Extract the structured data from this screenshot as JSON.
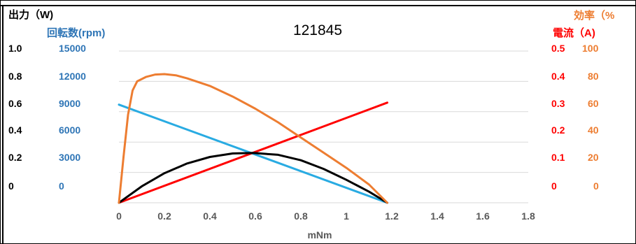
{
  "chart_data": {
    "type": "line",
    "title": "121845",
    "xlabel": "mNm",
    "x_ticks": [
      "0",
      "0.2",
      "0.4",
      "0.6",
      "0.8",
      "1",
      "1.2",
      "1.4",
      "1.6",
      "1.8"
    ],
    "xlim": [
      0,
      1.8
    ],
    "grid": true,
    "axes": {
      "output": {
        "label": "出力（W)",
        "ticks": [
          "0",
          "0.2",
          "0.4",
          "0.6",
          "0.8",
          "1.0"
        ],
        "range": [
          0,
          1.0
        ],
        "color": "#000000"
      },
      "speed": {
        "label": "回転数(rpm)",
        "ticks": [
          "0",
          "3000",
          "6000",
          "9000",
          "12000",
          "15000"
        ],
        "range": [
          0,
          15000
        ],
        "color": "#2e75b6"
      },
      "current": {
        "label": "電流（A)",
        "ticks": [
          "0",
          "0.1",
          "0.2",
          "0.3",
          "0.4",
          "0.5"
        ],
        "range": [
          0,
          0.5
        ],
        "color": "#ff0000"
      },
      "efficiency": {
        "label": "効率（%",
        "ticks": [
          "0",
          "20",
          "40",
          "60",
          "80",
          "100"
        ],
        "range": [
          0,
          100
        ],
        "color": "#ed7d31"
      }
    },
    "series": [
      {
        "axis": "speed",
        "color": "#29abe2",
        "points": [
          [
            0,
            9700
          ],
          [
            1.18,
            0
          ]
        ]
      },
      {
        "axis": "current",
        "color": "#ff0000",
        "points": [
          [
            0,
            0
          ],
          [
            1.18,
            0.33
          ]
        ]
      },
      {
        "axis": "output",
        "color": "#000000",
        "points": [
          [
            0,
            0
          ],
          [
            0.1,
            0.108
          ],
          [
            0.2,
            0.195
          ],
          [
            0.3,
            0.259
          ],
          [
            0.4,
            0.302
          ],
          [
            0.5,
            0.325
          ],
          [
            0.59,
            0.328
          ],
          [
            0.7,
            0.316
          ],
          [
            0.8,
            0.28
          ],
          [
            0.9,
            0.223
          ],
          [
            1.0,
            0.151
          ],
          [
            1.1,
            0.073
          ],
          [
            1.18,
            0
          ]
        ]
      },
      {
        "axis": "efficiency",
        "color": "#ed7d31",
        "points": [
          [
            0,
            0
          ],
          [
            0.02,
            30
          ],
          [
            0.04,
            58
          ],
          [
            0.06,
            74
          ],
          [
            0.08,
            80
          ],
          [
            0.12,
            83
          ],
          [
            0.16,
            84.5
          ],
          [
            0.2,
            84.8
          ],
          [
            0.25,
            84
          ],
          [
            0.3,
            82
          ],
          [
            0.4,
            77
          ],
          [
            0.5,
            70
          ],
          [
            0.6,
            62
          ],
          [
            0.7,
            53
          ],
          [
            0.8,
            43
          ],
          [
            0.9,
            33
          ],
          [
            1.0,
            23
          ],
          [
            1.1,
            12
          ],
          [
            1.18,
            0
          ]
        ]
      }
    ]
  }
}
